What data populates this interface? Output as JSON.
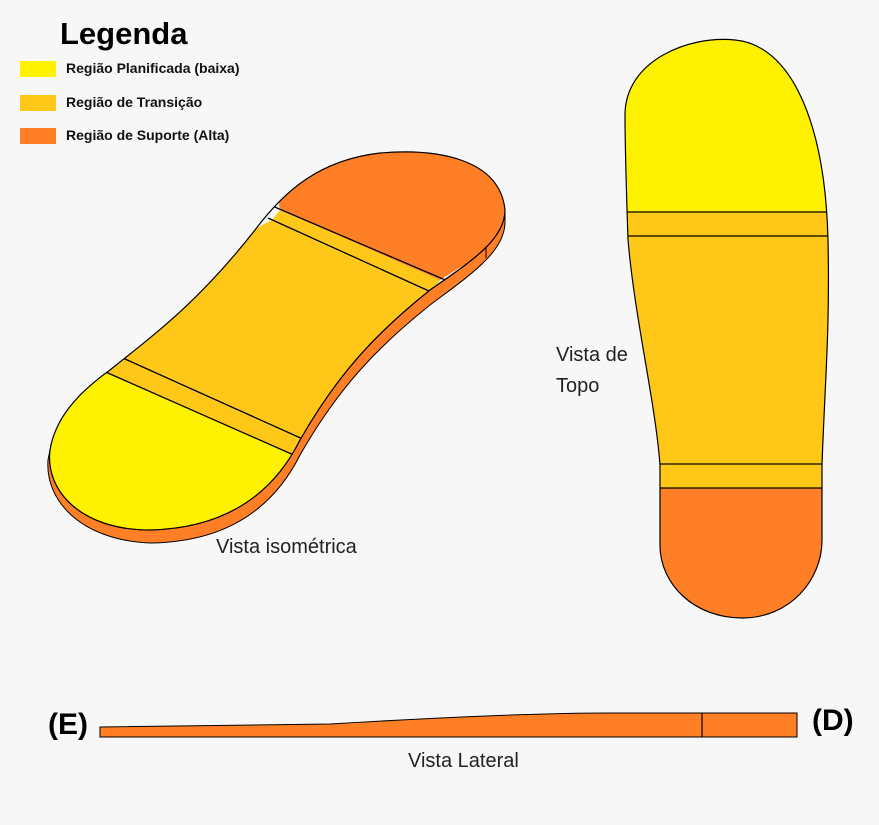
{
  "legend": {
    "title": "Legenda",
    "items": [
      {
        "label": "Região Planificada (baixa)",
        "color": "#fff200"
      },
      {
        "label": "Região de Transição",
        "color": "#ffc819"
      },
      {
        "label": "Região de Suporte (Alta)",
        "color": "#ff7f27"
      }
    ]
  },
  "views": {
    "isometric": "Vista isométrica",
    "top_line1": "Vista de",
    "top_line2": "Topo",
    "lateral": "Vista Lateral"
  },
  "sides": {
    "left": "(E)",
    "right": "(D)"
  }
}
